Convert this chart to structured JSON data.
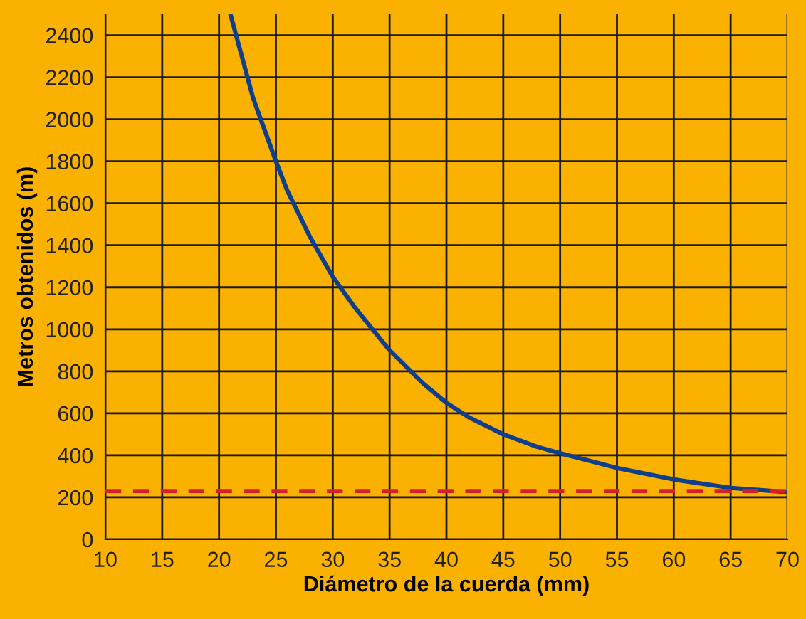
{
  "chart_data": {
    "type": "line",
    "xlabel": "Diámetro de la cuerda (mm)",
    "ylabel": "Metros obtenidos (m)",
    "x": [
      21,
      22,
      23,
      24,
      25,
      26,
      28,
      30,
      32,
      35,
      38,
      40,
      42,
      45,
      48,
      50,
      55,
      60,
      65,
      70
    ],
    "series": [
      {
        "color": "#0f3f8c",
        "values": [
          2500,
          2300,
          2100,
          1950,
          1800,
          1660,
          1440,
          1250,
          1100,
          900,
          740,
          650,
          580,
          500,
          440,
          410,
          340,
          285,
          245,
          225
        ]
      }
    ],
    "ref_lines": [
      {
        "axis": "y",
        "value": 230,
        "color": "#d4202a",
        "line_style": "dashed"
      }
    ],
    "xlim": [
      10,
      70
    ],
    "ylim": [
      0,
      2500
    ],
    "xticks": [
      10,
      15,
      20,
      25,
      30,
      35,
      40,
      45,
      50,
      55,
      60,
      65,
      70
    ],
    "yticks": [
      0,
      200,
      400,
      600,
      800,
      1000,
      1200,
      1400,
      1600,
      1800,
      2000,
      2200,
      2400
    ],
    "grid": true,
    "marker": "none",
    "line_style": "solid"
  }
}
